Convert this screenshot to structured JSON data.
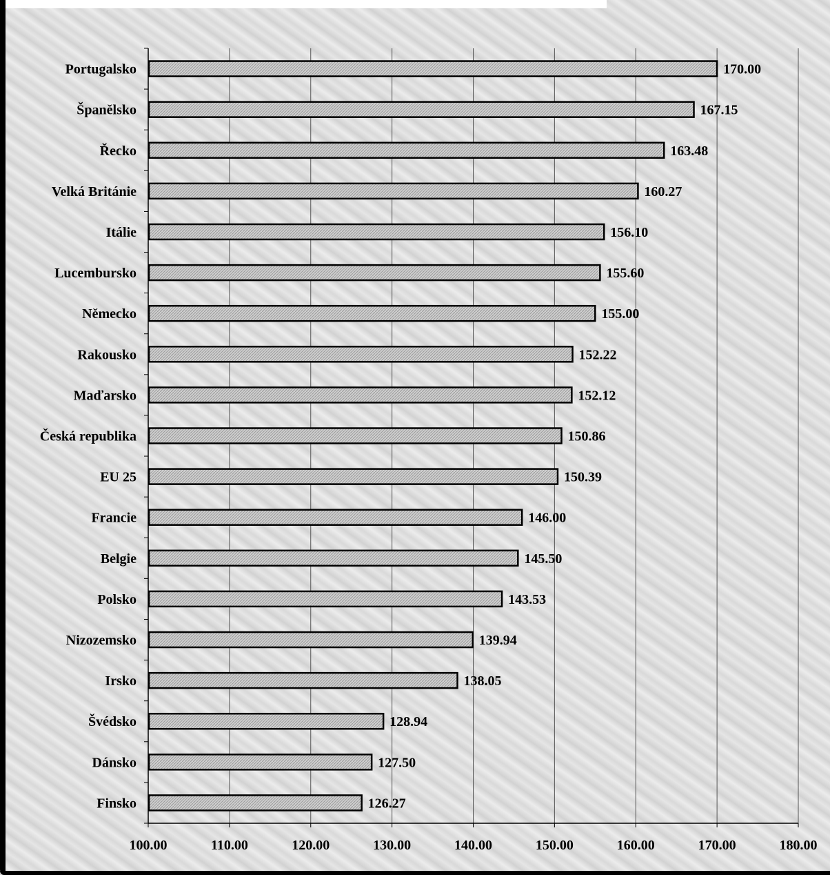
{
  "chart_data": {
    "type": "bar",
    "orientation": "horizontal",
    "categories": [
      "Portugalsko",
      "Španělsko",
      "Řecko",
      "Velká Británie",
      "Itálie",
      "Lucembursko",
      "Německo",
      "Rakousko",
      "Maďarsko",
      "Česká republika",
      "EU 25",
      "Francie",
      "Belgie",
      "Polsko",
      "Nizozemsko",
      "Irsko",
      "Švédsko",
      "Dánsko",
      "Finsko"
    ],
    "values": [
      170.0,
      167.15,
      163.48,
      160.27,
      156.1,
      155.6,
      155.0,
      152.22,
      152.12,
      150.86,
      150.39,
      146.0,
      145.5,
      143.53,
      139.94,
      138.05,
      128.94,
      127.5,
      126.27
    ],
    "value_labels": [
      "170.00",
      "167.15",
      "163.48",
      "160.27",
      "156.10",
      "155.60",
      "155.00",
      "152.22",
      "152.12",
      "150.86",
      "150.39",
      "146.00",
      "145.50",
      "143.53",
      "139.94",
      "138.05",
      "128.94",
      "127.50",
      "126.27"
    ],
    "x_ticks": [
      "100.00",
      "110.00",
      "120.00",
      "130.00",
      "140.00",
      "150.00",
      "160.00",
      "170.00",
      "180.00"
    ],
    "xlim": [
      100,
      180
    ],
    "grid": "vertical",
    "legend": "none",
    "title": "",
    "xlabel": "",
    "ylabel": "",
    "colors": {
      "bar_fill": "#d0d0d0",
      "bar_stroke": "#000000",
      "grid": "#555555"
    }
  }
}
